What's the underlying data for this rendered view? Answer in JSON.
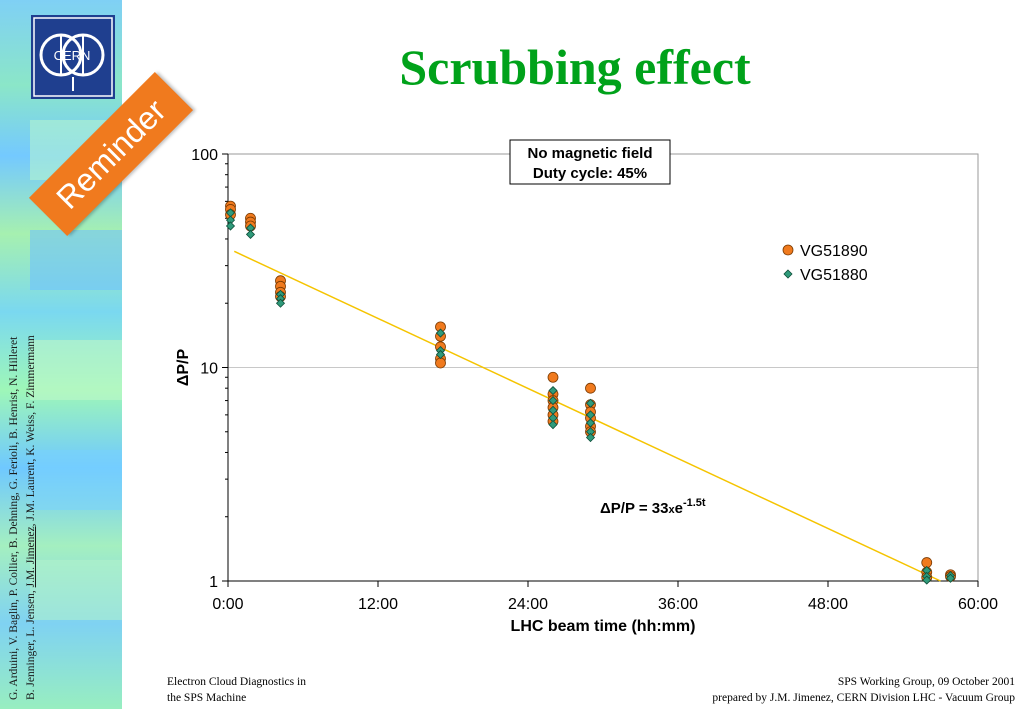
{
  "slide": {
    "title": "Scrubbing effect",
    "badge": "Reminder",
    "logo_text": "CERN",
    "authors_line1": "G. Arduini, V. Baglin, P. Collier, B. Dehning, G. Ferioli, B. Henrist, N. Hilleret",
    "authors_line2_a": "B. Jenninger, L. Jensen, ",
    "authors_line2_b": "J.M. Jimenez",
    "authors_line2_c": ", J.M. Laurent, K. Weiss, F. Zimmermann",
    "footer_left_1": "Electron Cloud Diagnostics in",
    "footer_left_2": "the SPS Machine",
    "footer_right_1": "SPS Working Group, 09 October 2001",
    "footer_right_2": "prepared by J.M. Jimenez, CERN Division LHC - Vacuum Group"
  },
  "chart_data": {
    "type": "scatter",
    "xlabel": "LHC beam time (hh:mm)",
    "ylabel": "ΔP/P",
    "ylog": true,
    "ylim": [
      1,
      100
    ],
    "xlim_hours": [
      0,
      60
    ],
    "x_ticks": [
      {
        "value": 0,
        "label": "0:00"
      },
      {
        "value": 12,
        "label": "12:00"
      },
      {
        "value": 24,
        "label": "24:00"
      },
      {
        "value": 36,
        "label": "36:00"
      },
      {
        "value": 48,
        "label": "48:00"
      },
      {
        "value": 60,
        "label": "60:00"
      }
    ],
    "y_ticks": [
      {
        "value": 1,
        "label": "1"
      },
      {
        "value": 10,
        "label": "10"
      },
      {
        "value": 100,
        "label": "100"
      }
    ],
    "annotation": {
      "line1": "No magnetic field",
      "line2": "Duty cycle: 45%"
    },
    "fit": {
      "prefix": "ΔP/P = 33",
      "times": "x",
      "base": "e",
      "exponent": "-1.5t",
      "points": [
        [
          0.5,
          35
        ],
        [
          57,
          1
        ]
      ]
    },
    "legend_position": "top-right",
    "colors": {
      "VG51890": "#f07a1e",
      "VG51880": "#2f9a7a",
      "fit": "#f5c400",
      "grid": "#c8c8c8"
    },
    "series": [
      {
        "name": "VG51890",
        "marker": "circle",
        "points": [
          [
            0.2,
            57
          ],
          [
            0.2,
            55
          ],
          [
            0.2,
            52
          ],
          [
            1.8,
            50
          ],
          [
            1.8,
            48
          ],
          [
            1.8,
            46
          ],
          [
            4.2,
            25.5
          ],
          [
            4.2,
            24
          ],
          [
            4.2,
            22.5
          ],
          [
            4.2,
            21.5
          ],
          [
            17,
            15.5
          ],
          [
            17,
            14
          ],
          [
            17,
            12.5
          ],
          [
            17,
            11
          ],
          [
            17,
            10.5
          ],
          [
            26,
            9
          ],
          [
            26,
            7.5
          ],
          [
            26,
            7
          ],
          [
            26,
            6.5
          ],
          [
            26,
            6
          ],
          [
            26,
            5.6
          ],
          [
            29,
            8
          ],
          [
            29,
            6.7
          ],
          [
            29,
            6.2
          ],
          [
            29,
            5.8
          ],
          [
            29,
            5.3
          ],
          [
            29,
            5
          ],
          [
            55.9,
            1.22
          ],
          [
            55.9,
            1.1
          ],
          [
            55.9,
            1.04
          ],
          [
            57.8,
            1.07
          ],
          [
            57.8,
            1.05
          ]
        ]
      },
      {
        "name": "VG51880",
        "marker": "diamond",
        "points": [
          [
            0.2,
            53
          ],
          [
            0.2,
            49
          ],
          [
            0.2,
            46
          ],
          [
            1.8,
            45
          ],
          [
            1.8,
            42
          ],
          [
            4.2,
            22
          ],
          [
            4.2,
            21
          ],
          [
            4.2,
            20
          ],
          [
            17,
            14.5
          ],
          [
            17,
            12
          ],
          [
            17,
            11.5
          ],
          [
            26,
            7.8
          ],
          [
            26,
            7
          ],
          [
            26,
            6.3
          ],
          [
            26,
            5.8
          ],
          [
            26,
            5.4
          ],
          [
            29,
            6.8
          ],
          [
            29,
            6
          ],
          [
            29,
            5.5
          ],
          [
            29,
            5
          ],
          [
            29,
            4.7
          ],
          [
            55.9,
            1.12
          ],
          [
            55.9,
            1.05
          ],
          [
            55.9,
            1.01
          ],
          [
            57.8,
            1.06
          ],
          [
            57.8,
            1.03
          ]
        ]
      }
    ]
  }
}
